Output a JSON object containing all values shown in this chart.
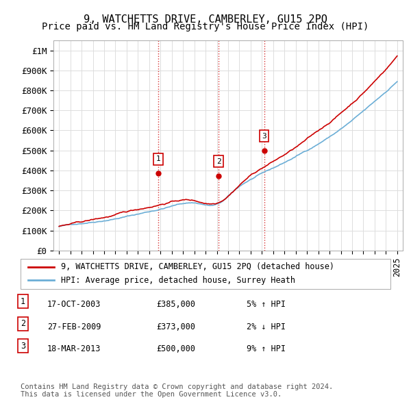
{
  "title": "9, WATCHETTS DRIVE, CAMBERLEY, GU15 2PQ",
  "subtitle": "Price paid vs. HM Land Registry's House Price Index (HPI)",
  "ylabel_top": "£1M",
  "y_ticks": [
    0,
    100000,
    200000,
    300000,
    400000,
    500000,
    600000,
    700000,
    800000,
    900000,
    1000000
  ],
  "y_tick_labels": [
    "£0",
    "£100K",
    "£200K",
    "£300K",
    "£400K",
    "£500K",
    "£600K",
    "£700K",
    "£800K",
    "£900K",
    "£1M"
  ],
  "x_start_year": 1995,
  "x_end_year": 2025,
  "hpi_color": "#6baed6",
  "price_color": "#cc0000",
  "sale_marker_color": "#cc0000",
  "vline_color": "#cc0000",
  "grid_color": "#dddddd",
  "background_color": "#ffffff",
  "sales": [
    {
      "date_num": 2003.8,
      "price": 385000,
      "label": "1"
    },
    {
      "date_num": 2009.15,
      "price": 373000,
      "label": "2"
    },
    {
      "date_num": 2013.2,
      "price": 500000,
      "label": "3"
    }
  ],
  "legend_entries": [
    {
      "label": "9, WATCHETTS DRIVE, CAMBERLEY, GU15 2PQ (detached house)",
      "color": "#cc0000"
    },
    {
      "label": "HPI: Average price, detached house, Surrey Heath",
      "color": "#6baed6"
    }
  ],
  "table_rows": [
    {
      "num": "1",
      "date": "17-OCT-2003",
      "price": "£385,000",
      "hpi": "5% ↑ HPI"
    },
    {
      "num": "2",
      "date": "27-FEB-2009",
      "price": "£373,000",
      "hpi": "2% ↓ HPI"
    },
    {
      "num": "3",
      "date": "18-MAR-2013",
      "price": "£500,000",
      "hpi": "9% ↑ HPI"
    }
  ],
  "footer": "Contains HM Land Registry data © Crown copyright and database right 2024.\nThis data is licensed under the Open Government Licence v3.0.",
  "title_fontsize": 11,
  "subtitle_fontsize": 10,
  "axis_fontsize": 9,
  "legend_fontsize": 8.5,
  "table_fontsize": 8.5,
  "footer_fontsize": 7.5
}
